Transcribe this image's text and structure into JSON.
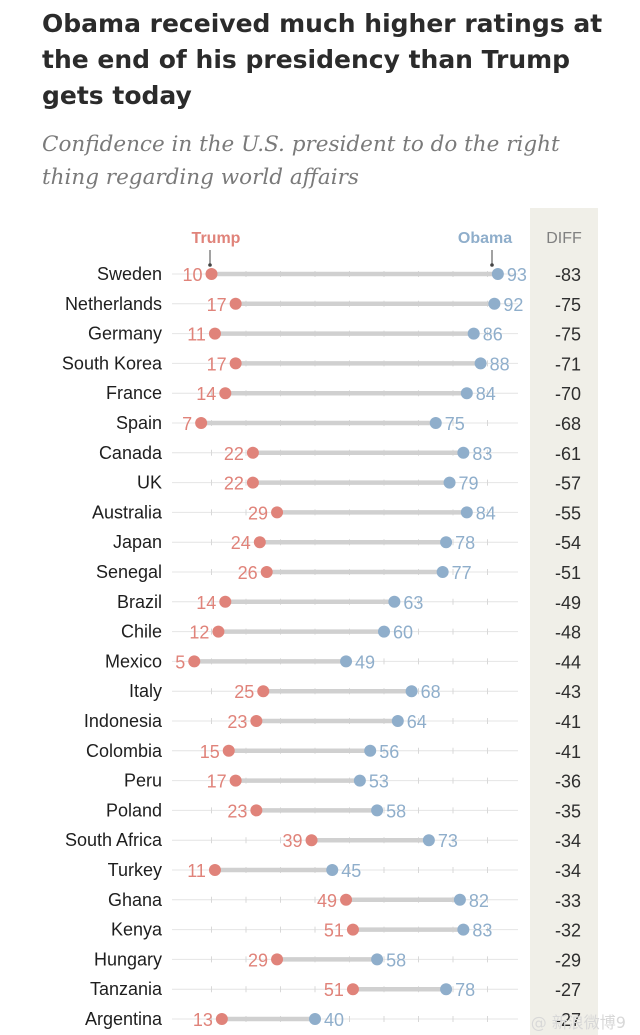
{
  "title": "Obama received much higher ratings at the end of his presidency than Trump gets today",
  "subtitle": "Confidence in the U.S. president to do the right thing regarding world affairs",
  "watermark": "@ 新浪微博9",
  "colors": {
    "trump": "#e0837a",
    "obama": "#8faecb",
    "connector": "#d0d0d0",
    "diff_panel": "#f0efe8"
  },
  "chart_data": {
    "type": "dumbbell",
    "legend": {
      "series_a": "Trump",
      "series_b": "Obama"
    },
    "diff_header": "DIFF",
    "xlim": [
      5,
      93
    ],
    "categories": [
      "Sweden",
      "Netherlands",
      "Germany",
      "South Korea",
      "France",
      "Spain",
      "Canada",
      "UK",
      "Australia",
      "Japan",
      "Senegal",
      "Brazil",
      "Chile",
      "Mexico",
      "Italy",
      "Indonesia",
      "Colombia",
      "Peru",
      "Poland",
      "South Africa",
      "Turkey",
      "Ghana",
      "Kenya",
      "Hungary",
      "Tanzania",
      "Argentina"
    ],
    "series": [
      {
        "name": "Trump",
        "values": [
          10,
          17,
          11,
          17,
          14,
          7,
          22,
          22,
          29,
          24,
          26,
          14,
          12,
          5,
          25,
          23,
          15,
          17,
          23,
          39,
          11,
          49,
          51,
          29,
          51,
          13
        ]
      },
      {
        "name": "Obama",
        "values": [
          93,
          92,
          86,
          88,
          84,
          75,
          83,
          79,
          84,
          78,
          77,
          63,
          60,
          49,
          68,
          64,
          56,
          53,
          58,
          73,
          45,
          82,
          83,
          58,
          78,
          40
        ]
      }
    ],
    "diff": [
      -83,
      -75,
      -75,
      -71,
      -70,
      -68,
      -61,
      -57,
      -55,
      -54,
      -51,
      -49,
      -48,
      -44,
      -43,
      -41,
      -41,
      -36,
      -35,
      -34,
      -34,
      -33,
      -32,
      -29,
      -27,
      -27
    ]
  }
}
